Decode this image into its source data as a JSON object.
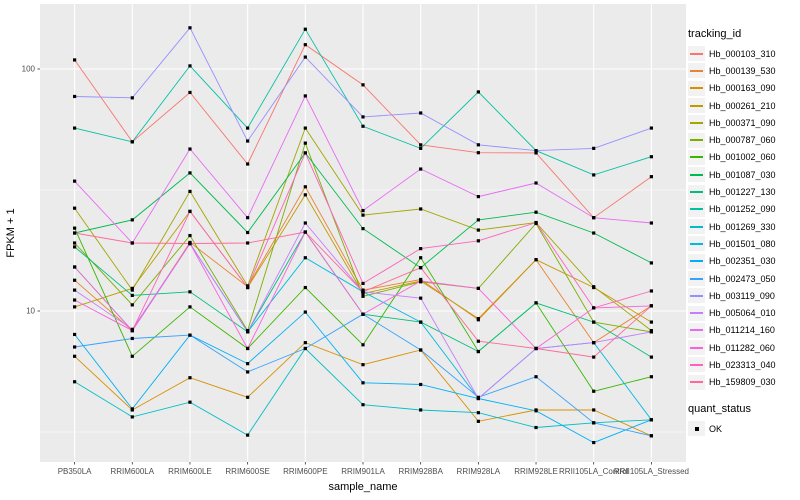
{
  "figure": {
    "y_axis": {
      "title": "FPKM + 1",
      "tick_labels": [
        "100",
        "10"
      ],
      "tick_values": [
        100,
        10
      ],
      "minor_values": [
        31.62,
        3.162
      ]
    },
    "x_axis": {
      "title": "sample_name"
    },
    "legend": {
      "tracking_title": "tracking_id",
      "quant_title": "quant_status",
      "quant_items": [
        {
          "label": "OK",
          "marker": "black-filled-square"
        }
      ]
    },
    "colors": {
      "panel_bg": "#EBEBEB",
      "grid": "#FFFFFF",
      "axis_text": "#4D4D4D",
      "title_text": "#000000",
      "point": "#000000",
      "legend_key_bg": "#F2F2F2",
      "tick_mark": "#333333"
    }
  },
  "chart_data": {
    "type": "line",
    "title": "",
    "xlabel": "sample_name",
    "ylabel": "FPKM + 1",
    "y_scale": "log10",
    "ylim": [
      2.4,
      186
    ],
    "grid": true,
    "legend_position": "right",
    "point_shape": "filled-square-black",
    "categories": [
      "PB350LA",
      "RRIM600LA",
      "RRIM600LE",
      "RRIM600SE",
      "RRIM600PE",
      "RRIM901LA",
      "RRIM928BA",
      "RRIM928LA",
      "RRIM928LE",
      "RRII105LA_Control",
      "RRII105LA_Stressed"
    ],
    "series": [
      {
        "name": "Hb_000103_310",
        "color": "#F8766D",
        "values": [
          109,
          50,
          80,
          40.5,
          126,
          86,
          48.6,
          45.1,
          45,
          24.3,
          35.9
        ]
      },
      {
        "name": "Hb_000139_530",
        "color": "#EA8331",
        "values": [
          13.4,
          8.3,
          19.2,
          12.6,
          32.6,
          12.2,
          13.5,
          9.2,
          16.3,
          7.4,
          10.5
        ]
      },
      {
        "name": "Hb_000163_090",
        "color": "#D89000",
        "values": [
          6.5,
          3.9,
          5.3,
          4.4,
          7.4,
          6.0,
          6.9,
          3.5,
          3.9,
          3.9,
          3.05
        ]
      },
      {
        "name": "Hb_000261_210",
        "color": "#C09B00",
        "values": [
          10.4,
          12.4,
          25.8,
          12.5,
          30.2,
          11.8,
          13.3,
          9.3,
          16.3,
          12.5,
          9.0
        ]
      },
      {
        "name": "Hb_000371_090",
        "color": "#A3A500",
        "values": [
          26.6,
          12.2,
          31.2,
          12.7,
          57,
          24.9,
          26.4,
          21.6,
          23.2,
          12.6,
          8.3
        ]
      },
      {
        "name": "Hb_000787_060",
        "color": "#7CAE00",
        "values": [
          19.1,
          10.6,
          20.5,
          8.3,
          49.4,
          11.5,
          13.2,
          12.4,
          23.0,
          9.0,
          8.2
        ]
      },
      {
        "name": "Hb_001002_060",
        "color": "#39B600",
        "values": [
          22.0,
          6.5,
          10.4,
          7.0,
          12.5,
          7.25,
          16.6,
          6.8,
          10.8,
          4.66,
          5.35
        ]
      },
      {
        "name": "Hb_001087_030",
        "color": "#00BB4E",
        "values": [
          21.0,
          23.8,
          37.2,
          21.1,
          45.0,
          21.9,
          15.1,
          23.8,
          25.6,
          21.0,
          15.8
        ]
      },
      {
        "name": "Hb_001227_130",
        "color": "#00BF7D",
        "values": [
          18.4,
          11.6,
          12.0,
          8.2,
          21.2,
          9.7,
          9.0,
          6.8,
          10.8,
          9.0,
          6.45
        ]
      },
      {
        "name": "Hb_001252_090",
        "color": "#00C1A3",
        "values": [
          57,
          50,
          103,
          57,
          146,
          58,
          47,
          80.4,
          46,
          36.5,
          43.4
        ]
      },
      {
        "name": "Hb_001269_330",
        "color": "#00BFC4",
        "values": [
          5.1,
          3.65,
          4.2,
          3.07,
          7.0,
          4.1,
          3.9,
          3.8,
          3.3,
          3.45,
          3.55
        ]
      },
      {
        "name": "Hb_001501_080",
        "color": "#00BAE0",
        "values": [
          15.2,
          8.3,
          19.0,
          8.2,
          16.6,
          12.0,
          9.0,
          4.35,
          7.0,
          7.4,
          3.55
        ]
      },
      {
        "name": "Hb_002351_030",
        "color": "#00B0F6",
        "values": [
          8.0,
          3.94,
          7.95,
          6.06,
          9.9,
          5.05,
          4.97,
          4.35,
          3.87,
          2.86,
          3.55
        ]
      },
      {
        "name": "Hb_002473_050",
        "color": "#35A2FF",
        "values": [
          7.1,
          7.7,
          7.95,
          5.6,
          7.0,
          9.7,
          6.9,
          4.4,
          5.35,
          3.45,
          3.05
        ]
      },
      {
        "name": "Hb_003119_090",
        "color": "#9590FF",
        "values": [
          77,
          76,
          148,
          50.4,
          112,
          63.4,
          65.8,
          48.6,
          46,
          47,
          57
        ]
      },
      {
        "name": "Hb_005064_010",
        "color": "#C77CFF",
        "values": [
          12.2,
          8.4,
          19.0,
          8.2,
          23.1,
          12.0,
          11.3,
          4.35,
          7.0,
          7.4,
          8.2
        ]
      },
      {
        "name": "Hb_011214_160",
        "color": "#E76BF3",
        "values": [
          34.4,
          19.1,
          46.7,
          24.3,
          77.4,
          26.0,
          38.6,
          29.7,
          33.8,
          24.3,
          23.1
        ]
      },
      {
        "name": "Hb_011282_060",
        "color": "#FA62DB",
        "values": [
          11.1,
          8.3,
          19.0,
          7.0,
          21.2,
          9.7,
          13.3,
          12.4,
          7.0,
          10.3,
          10.5
        ]
      },
      {
        "name": "Hb_023313_040",
        "color": "#FF62BC",
        "values": [
          15.2,
          8.3,
          25.8,
          12.5,
          45.0,
          13.0,
          18.1,
          19.5,
          23.2,
          10.3,
          12.1
        ]
      },
      {
        "name": "Hb_159809_030",
        "color": "#FF6A98",
        "values": [
          21.0,
          19.1,
          19.0,
          19.1,
          21.2,
          12.0,
          15.1,
          7.5,
          7.0,
          6.45,
          10.5
        ]
      }
    ]
  }
}
